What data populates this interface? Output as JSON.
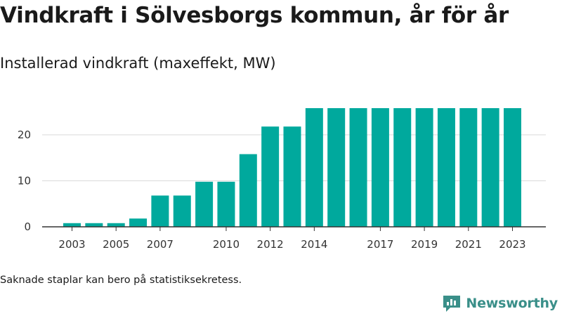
{
  "title": "Vindkraft i Sölvesborgs kommun, år för år",
  "subtitle": "Installerad vindkraft (maxeffekt, MW)",
  "note": "Saknade staplar kan bero på statistiksekretess.",
  "brand": {
    "name": "Newsworthy",
    "icon": "newsworthy-logo-icon"
  },
  "colors": {
    "bar": "#00a99d",
    "brand": "#3a8f89",
    "grid": "#d9d9d9",
    "axis": "#333333",
    "text": "#1a1a1a"
  },
  "chart_data": {
    "type": "bar",
    "title": "",
    "xlabel": "",
    "ylabel": "",
    "categories": [
      "2003",
      "2004",
      "2005",
      "2006",
      "2007",
      "2008",
      "2009",
      "2010",
      "2011",
      "2012",
      "2013",
      "2014",
      "2015",
      "2016",
      "2017",
      "2018",
      "2019",
      "2020",
      "2021",
      "2022",
      "2023"
    ],
    "values": [
      0.8,
      0.8,
      0.8,
      1.8,
      6.8,
      6.8,
      9.8,
      9.8,
      15.8,
      21.8,
      21.8,
      25.8,
      25.8,
      25.8,
      25.8,
      25.8,
      25.8,
      25.8,
      25.8,
      25.8,
      25.8
    ],
    "x_tick_labels": [
      "2003",
      "2005",
      "2007",
      "2010",
      "2012",
      "2014",
      "2017",
      "2019",
      "2021",
      "2023"
    ],
    "y_ticks": [
      0,
      10,
      20
    ],
    "ylim": [
      0,
      27
    ],
    "grid": true,
    "legend": "none"
  }
}
